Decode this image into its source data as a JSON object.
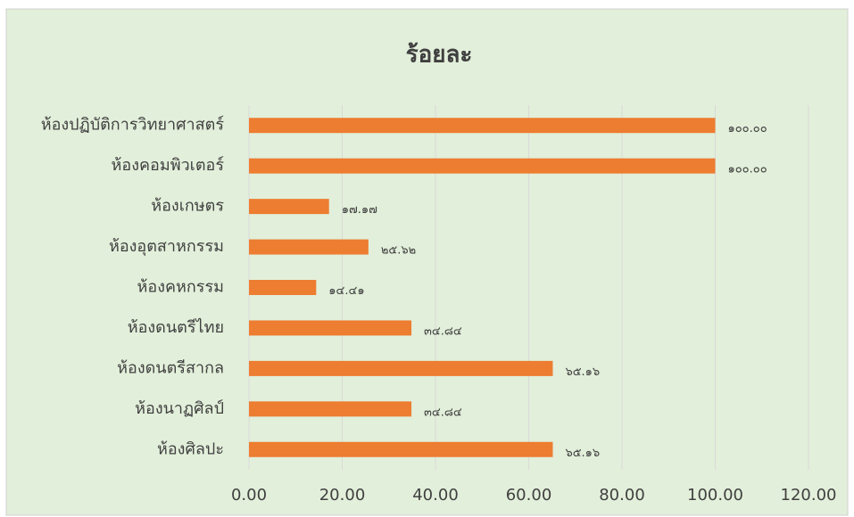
{
  "chart_data": {
    "type": "bar",
    "orientation": "horizontal",
    "title": "ร้อยละ",
    "categories": [
      "ห้องปฏิบัติการวิทยาศาสตร์",
      "ห้องคอมพิวเตอร์",
      "ห้องเกษตร",
      "ห้องอุตสาหกรรม",
      "ห้องคหกรรม",
      "ห้องดนตรีไทย",
      "ห้องดนตรีสากล",
      "ห้องนาฏศิลป์",
      "ห้องศิลปะ"
    ],
    "values": [
      100.0,
      100.0,
      17.17,
      25.62,
      14.41,
      34.84,
      65.16,
      34.84,
      65.16
    ],
    "value_labels": [
      "๑๐๐.๐๐",
      "๑๐๐.๐๐",
      "๑๗.๑๗",
      "๒๕.๖๒",
      "๑๔.๔๑",
      "๓๔.๘๔",
      "๖๕.๑๖",
      "๓๔.๘๔",
      "๖๕.๑๖"
    ],
    "color": "#ed7d31",
    "xlim": [
      0,
      120
    ],
    "xticks": [
      {
        "value": 0,
        "label": "0.00"
      },
      {
        "value": 20,
        "label": "20.00"
      },
      {
        "value": 40,
        "label": "40.00"
      },
      {
        "value": 60,
        "label": "60.00"
      },
      {
        "value": 80,
        "label": "80.00"
      },
      {
        "value": 100,
        "label": "100.00"
      },
      {
        "value": 120,
        "label": "120.00"
      }
    ],
    "grid": true
  }
}
